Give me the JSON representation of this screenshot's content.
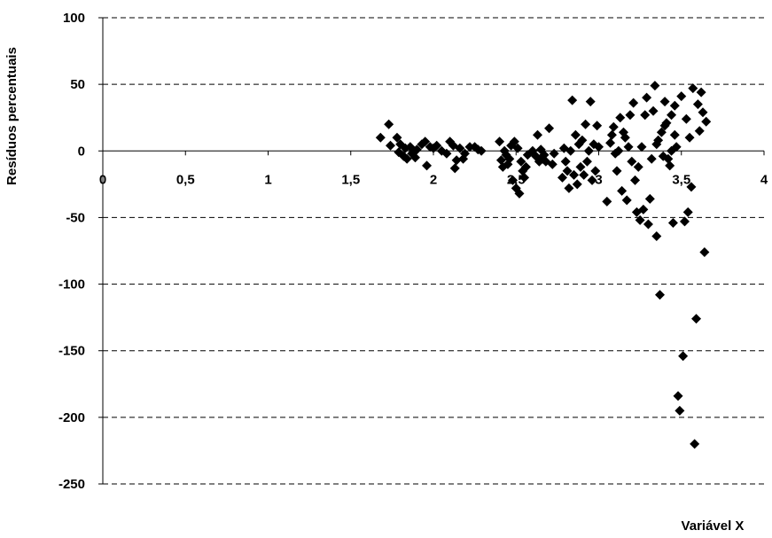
{
  "chart_data": {
    "type": "scatter",
    "title": "",
    "xlabel": "Variável X",
    "ylabel": "Resíduos percentuais",
    "xlim": [
      0,
      4
    ],
    "ylim": [
      -250,
      100
    ],
    "x_ticks": [
      "0",
      "0,5",
      "1",
      "1,5",
      "2",
      "2,5",
      "3",
      "3,5",
      "4"
    ],
    "y_ticks": [
      "100",
      "50",
      "0",
      "-50",
      "-100",
      "-150",
      "-200",
      "-250"
    ],
    "grid": "horizontal dashed",
    "marker": "diamond",
    "colors": {
      "marker": "#000000",
      "grid": "#000000",
      "axis": "#000000"
    },
    "series": [
      {
        "points": [
          [
            1.68,
            10
          ],
          [
            1.73,
            20
          ],
          [
            1.74,
            4
          ],
          [
            1.78,
            10
          ],
          [
            1.79,
            -1
          ],
          [
            1.8,
            5
          ],
          [
            1.82,
            -4
          ],
          [
            1.83,
            2
          ],
          [
            1.84,
            -6
          ],
          [
            1.86,
            3
          ],
          [
            1.87,
            -2
          ],
          [
            1.89,
            -5
          ],
          [
            1.9,
            1
          ],
          [
            1.93,
            5
          ],
          [
            1.95,
            7
          ],
          [
            1.96,
            -11
          ],
          [
            1.98,
            3
          ],
          [
            2.0,
            2
          ],
          [
            2.02,
            4
          ],
          [
            2.05,
            0
          ],
          [
            2.08,
            -2
          ],
          [
            2.1,
            7
          ],
          [
            2.12,
            4
          ],
          [
            2.13,
            -13
          ],
          [
            2.14,
            -7
          ],
          [
            2.16,
            2
          ],
          [
            2.18,
            -6
          ],
          [
            2.19,
            -2
          ],
          [
            2.22,
            3
          ],
          [
            2.25,
            3
          ],
          [
            2.27,
            1
          ],
          [
            2.29,
            0
          ],
          [
            2.4,
            7
          ],
          [
            2.41,
            -7
          ],
          [
            2.42,
            -12
          ],
          [
            2.43,
            0
          ],
          [
            2.44,
            -3
          ],
          [
            2.45,
            -10
          ],
          [
            2.46,
            -6
          ],
          [
            2.47,
            4
          ],
          [
            2.48,
            -22
          ],
          [
            2.49,
            7
          ],
          [
            2.5,
            -28
          ],
          [
            2.51,
            2
          ],
          [
            2.52,
            -32
          ],
          [
            2.53,
            -8
          ],
          [
            2.54,
            -15
          ],
          [
            2.55,
            -20
          ],
          [
            2.56,
            -12
          ],
          [
            2.57,
            -3
          ],
          [
            2.6,
            0
          ],
          [
            2.62,
            -4
          ],
          [
            2.63,
            12
          ],
          [
            2.64,
            -8
          ],
          [
            2.65,
            1
          ],
          [
            2.66,
            -6
          ],
          [
            2.67,
            -3
          ],
          [
            2.68,
            -8
          ],
          [
            2.7,
            17
          ],
          [
            2.72,
            -10
          ],
          [
            2.73,
            -2
          ],
          [
            2.78,
            -20
          ],
          [
            2.79,
            2
          ],
          [
            2.8,
            -8
          ],
          [
            2.81,
            -15
          ],
          [
            2.82,
            -28
          ],
          [
            2.83,
            0
          ],
          [
            2.84,
            38
          ],
          [
            2.85,
            -18
          ],
          [
            2.86,
            12
          ],
          [
            2.87,
            -25
          ],
          [
            2.88,
            5
          ],
          [
            2.89,
            -12
          ],
          [
            2.9,
            8
          ],
          [
            2.91,
            -18
          ],
          [
            2.92,
            20
          ],
          [
            2.93,
            -8
          ],
          [
            2.94,
            0
          ],
          [
            2.95,
            37
          ],
          [
            2.96,
            -22
          ],
          [
            2.97,
            5
          ],
          [
            2.98,
            -15
          ],
          [
            2.99,
            19
          ],
          [
            3.0,
            3
          ],
          [
            3.05,
            -38
          ],
          [
            3.07,
            6
          ],
          [
            3.08,
            12
          ],
          [
            3.09,
            18
          ],
          [
            3.1,
            -2
          ],
          [
            3.11,
            -15
          ],
          [
            3.12,
            0
          ],
          [
            3.13,
            25
          ],
          [
            3.14,
            -30
          ],
          [
            3.15,
            14
          ],
          [
            3.16,
            10
          ],
          [
            3.17,
            -37
          ],
          [
            3.18,
            3
          ],
          [
            3.19,
            27
          ],
          [
            3.2,
            -8
          ],
          [
            3.21,
            36
          ],
          [
            3.22,
            -22
          ],
          [
            3.23,
            -46
          ],
          [
            3.24,
            -12
          ],
          [
            3.25,
            -52
          ],
          [
            3.26,
            3
          ],
          [
            3.27,
            -44
          ],
          [
            3.28,
            27
          ],
          [
            3.29,
            40
          ],
          [
            3.3,
            -55
          ],
          [
            3.31,
            -36
          ],
          [
            3.32,
            -6
          ],
          [
            3.33,
            30
          ],
          [
            3.34,
            49
          ],
          [
            3.35,
            -64
          ],
          [
            3.36,
            8
          ],
          [
            3.37,
            -108
          ],
          [
            3.38,
            14
          ],
          [
            3.39,
            -4
          ],
          [
            3.4,
            37
          ],
          [
            3.41,
            21
          ],
          [
            3.42,
            -6
          ],
          [
            3.43,
            -11
          ],
          [
            3.44,
            27
          ],
          [
            3.45,
            -54
          ],
          [
            3.46,
            34
          ],
          [
            3.47,
            3
          ],
          [
            3.48,
            -184
          ],
          [
            3.49,
            -195
          ],
          [
            3.5,
            41
          ],
          [
            3.51,
            -154
          ],
          [
            3.52,
            -53
          ],
          [
            3.53,
            24
          ],
          [
            3.54,
            -46
          ],
          [
            3.55,
            10
          ],
          [
            3.56,
            -27
          ],
          [
            3.57,
            47
          ],
          [
            3.58,
            -220
          ],
          [
            3.59,
            -126
          ],
          [
            3.6,
            35
          ],
          [
            3.61,
            15
          ],
          [
            3.62,
            44
          ],
          [
            3.63,
            29
          ],
          [
            3.64,
            -76
          ],
          [
            3.65,
            22
          ],
          [
            3.46,
            12
          ],
          [
            3.4,
            19
          ],
          [
            3.35,
            5
          ],
          [
            3.44,
            0
          ]
        ]
      }
    ]
  }
}
